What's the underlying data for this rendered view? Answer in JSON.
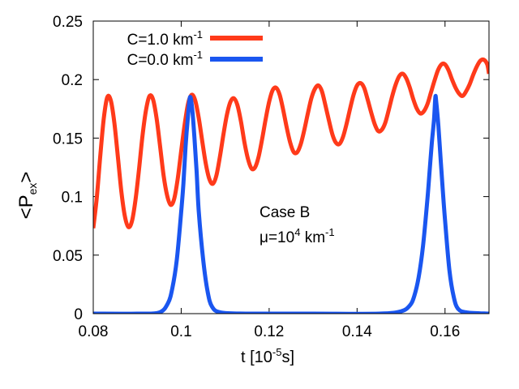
{
  "chart_data": {
    "type": "line",
    "title": "",
    "xlabel": {
      "base": "t [10",
      "sup": "-5",
      "tail": "s]"
    },
    "ylabel": {
      "open": "<P",
      "sub": "ex",
      "close": ">"
    },
    "xlim": [
      0.08,
      0.17
    ],
    "ylim": [
      0,
      0.25
    ],
    "xticks": [
      {
        "value": 0.08,
        "label": "0.08"
      },
      {
        "value": 0.1,
        "label": "0.1"
      },
      {
        "value": 0.12,
        "label": "0.12"
      },
      {
        "value": 0.14,
        "label": "0.14"
      },
      {
        "value": 0.16,
        "label": "0.16"
      }
    ],
    "yticks": [
      {
        "value": 0,
        "label": "0"
      },
      {
        "value": 0.05,
        "label": "0.05"
      },
      {
        "value": 0.1,
        "label": "0.1"
      },
      {
        "value": 0.15,
        "label": "0.15"
      },
      {
        "value": 0.2,
        "label": "0.2"
      },
      {
        "value": 0.25,
        "label": "0.25"
      }
    ],
    "grid": false,
    "legend_position": "top-left",
    "series": [
      {
        "name": "C=1.0 km-1",
        "label": {
          "base": "C=1.0 km",
          "sup": "-1"
        },
        "color": "#ff3a1a",
        "x": [
          0.08,
          0.0808,
          0.0816,
          0.0824,
          0.0832,
          0.084,
          0.0848,
          0.0856,
          0.0864,
          0.0872,
          0.088,
          0.0888,
          0.0896,
          0.0904,
          0.0912,
          0.092,
          0.0928,
          0.0936,
          0.0944,
          0.0952,
          0.096,
          0.0968,
          0.0976,
          0.0984,
          0.0992,
          0.1,
          0.1008,
          0.1016,
          0.1024,
          0.1032,
          0.104,
          0.1048,
          0.1056,
          0.1064,
          0.1072,
          0.108,
          0.1088,
          0.1096,
          0.1104,
          0.1112,
          0.112,
          0.1128,
          0.1136,
          0.1144,
          0.1152,
          0.116,
          0.1168,
          0.1176,
          0.1184,
          0.1192,
          0.12,
          0.1208,
          0.1216,
          0.1224,
          0.1232,
          0.124,
          0.1248,
          0.1256,
          0.1264,
          0.1272,
          0.128,
          0.1288,
          0.1296,
          0.1304,
          0.1312,
          0.132,
          0.1328,
          0.1336,
          0.1344,
          0.1352,
          0.136,
          0.1368,
          0.1376,
          0.1384,
          0.1392,
          0.14,
          0.1408,
          0.1416,
          0.1424,
          0.1432,
          0.144,
          0.1448,
          0.1456,
          0.1464,
          0.1472,
          0.148,
          0.1488,
          0.1496,
          0.1504,
          0.1512,
          0.152,
          0.1528,
          0.1536,
          0.1544,
          0.1552,
          0.156,
          0.1568,
          0.1576,
          0.1584,
          0.1592,
          0.16,
          0.1608,
          0.1616,
          0.1624,
          0.1632,
          0.164,
          0.1648,
          0.1656,
          0.1664,
          0.1672,
          0.168,
          0.1688,
          0.1696,
          0.17
        ],
        "y": [
          0.073,
          0.099,
          0.135,
          0.167,
          0.185,
          0.182,
          0.163,
          0.134,
          0.104,
          0.083,
          0.074,
          0.079,
          0.097,
          0.123,
          0.152,
          0.174,
          0.186,
          0.183,
          0.167,
          0.143,
          0.118,
          0.101,
          0.093,
          0.098,
          0.115,
          0.139,
          0.162,
          0.18,
          0.187,
          0.182,
          0.167,
          0.147,
          0.128,
          0.115,
          0.111,
          0.118,
          0.134,
          0.153,
          0.17,
          0.181,
          0.184,
          0.178,
          0.164,
          0.146,
          0.132,
          0.124,
          0.125,
          0.134,
          0.149,
          0.166,
          0.181,
          0.191,
          0.193,
          0.187,
          0.174,
          0.159,
          0.146,
          0.138,
          0.138,
          0.145,
          0.157,
          0.171,
          0.184,
          0.192,
          0.195,
          0.19,
          0.178,
          0.165,
          0.153,
          0.146,
          0.145,
          0.151,
          0.162,
          0.175,
          0.187,
          0.195,
          0.197,
          0.193,
          0.183,
          0.172,
          0.162,
          0.156,
          0.157,
          0.163,
          0.174,
          0.186,
          0.196,
          0.203,
          0.205,
          0.201,
          0.193,
          0.183,
          0.175,
          0.171,
          0.173,
          0.179,
          0.189,
          0.199,
          0.208,
          0.213,
          0.213,
          0.208,
          0.2,
          0.193,
          0.188,
          0.186,
          0.19,
          0.196,
          0.204,
          0.211,
          0.216,
          0.217,
          0.213,
          0.205
        ]
      },
      {
        "name": "C=0.0 km-1",
        "label": {
          "base": "C=0.0 km",
          "sup": "-1"
        },
        "color": "#1a56f0",
        "peaks": [
          {
            "center": 0.102,
            "height": 0.185,
            "width": 0.0017
          },
          {
            "center": 0.1578,
            "height": 0.185,
            "width": 0.0017
          }
        ],
        "x": [
          0.08,
          0.09,
          0.095,
          0.097,
          0.098,
          0.099,
          0.1,
          0.1005,
          0.101,
          0.1015,
          0.102,
          0.1025,
          0.103,
          0.1035,
          0.104,
          0.105,
          0.106,
          0.107,
          0.109,
          0.115,
          0.13,
          0.145,
          0.15,
          0.152,
          0.153,
          0.154,
          0.155,
          0.156,
          0.1565,
          0.157,
          0.1575,
          0.1578,
          0.158,
          0.1585,
          0.159,
          0.1595,
          0.16,
          0.161,
          0.162,
          0.163,
          0.165,
          0.17
        ],
        "y": [
          0,
          0,
          0.001,
          0.009,
          0.022,
          0.046,
          0.087,
          0.111,
          0.143,
          0.167,
          0.185,
          0.175,
          0.151,
          0.122,
          0.087,
          0.046,
          0.019,
          0.006,
          0.001,
          0,
          0,
          0,
          0.002,
          0.007,
          0.015,
          0.031,
          0.058,
          0.098,
          0.122,
          0.146,
          0.166,
          0.185,
          0.181,
          0.16,
          0.132,
          0.105,
          0.08,
          0.037,
          0.014,
          0.004,
          0.001,
          0
        ]
      }
    ],
    "annotations": [
      {
        "lines": [
          {
            "base": "Case B",
            "sup": "",
            "tail": ""
          },
          {
            "base": "μ=10",
            "sup": "4",
            "tail": " km",
            "sup2": "-1"
          }
        ]
      }
    ]
  }
}
